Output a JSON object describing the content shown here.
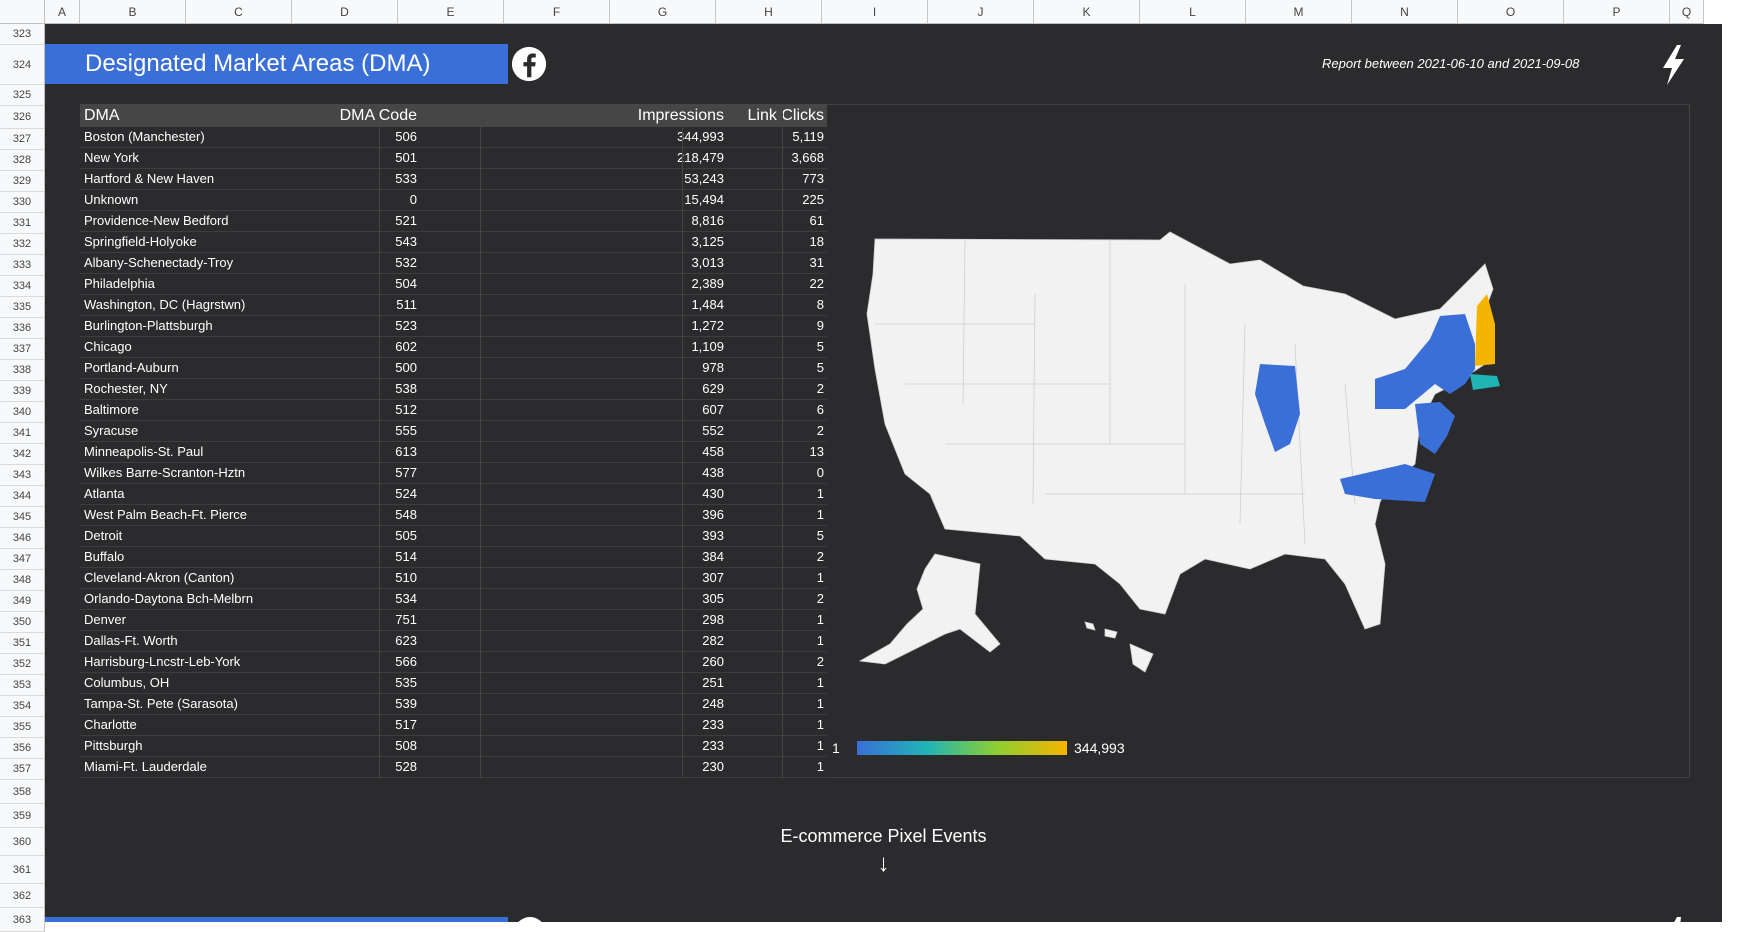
{
  "columns": [
    "A",
    "B",
    "C",
    "D",
    "E",
    "F",
    "G",
    "H",
    "I",
    "J",
    "K",
    "L",
    "M",
    "N",
    "O",
    "P",
    "Q"
  ],
  "rows": [
    "323",
    "324",
    "325",
    "326",
    "327",
    "328",
    "329",
    "330",
    "331",
    "332",
    "333",
    "334",
    "335",
    "336",
    "337",
    "338",
    "339",
    "340",
    "341",
    "342",
    "343",
    "344",
    "345",
    "346",
    "347",
    "348",
    "349",
    "350",
    "351",
    "352",
    "353",
    "354",
    "355",
    "356",
    "357",
    "358",
    "359",
    "360",
    "361",
    "362",
    "363"
  ],
  "header": {
    "title": "Designated Market Areas (DMA)",
    "report": "Report between 2021-06-10 and 2021-09-08"
  },
  "table": {
    "headers": {
      "dma": "DMA",
      "code": "DMA Code",
      "impressions": "Impressions",
      "clicks": "Link Clicks"
    },
    "rows": [
      {
        "dma": "Boston (Manchester)",
        "code": "506",
        "impressions": "344,993",
        "clicks": "5,119"
      },
      {
        "dma": "New York",
        "code": "501",
        "impressions": "218,479",
        "clicks": "3,668"
      },
      {
        "dma": "Hartford & New Haven",
        "code": "533",
        "impressions": "53,243",
        "clicks": "773"
      },
      {
        "dma": "Unknown",
        "code": "0",
        "impressions": "15,494",
        "clicks": "225"
      },
      {
        "dma": "Providence-New Bedford",
        "code": "521",
        "impressions": "8,816",
        "clicks": "61"
      },
      {
        "dma": "Springfield-Holyoke",
        "code": "543",
        "impressions": "3,125",
        "clicks": "18"
      },
      {
        "dma": "Albany-Schenectady-Troy",
        "code": "532",
        "impressions": "3,013",
        "clicks": "31"
      },
      {
        "dma": "Philadelphia",
        "code": "504",
        "impressions": "2,389",
        "clicks": "22"
      },
      {
        "dma": "Washington, DC (Hagrstwn)",
        "code": "511",
        "impressions": "1,484",
        "clicks": "8"
      },
      {
        "dma": "Burlington-Plattsburgh",
        "code": "523",
        "impressions": "1,272",
        "clicks": "9"
      },
      {
        "dma": "Chicago",
        "code": "602",
        "impressions": "1,109",
        "clicks": "5"
      },
      {
        "dma": "Portland-Auburn",
        "code": "500",
        "impressions": "978",
        "clicks": "5"
      },
      {
        "dma": "Rochester, NY",
        "code": "538",
        "impressions": "629",
        "clicks": "2"
      },
      {
        "dma": "Baltimore",
        "code": "512",
        "impressions": "607",
        "clicks": "6"
      },
      {
        "dma": "Syracuse",
        "code": "555",
        "impressions": "552",
        "clicks": "2"
      },
      {
        "dma": "Minneapolis-St. Paul",
        "code": "613",
        "impressions": "458",
        "clicks": "13"
      },
      {
        "dma": "Wilkes Barre-Scranton-Hztn",
        "code": "577",
        "impressions": "438",
        "clicks": "0"
      },
      {
        "dma": "Atlanta",
        "code": "524",
        "impressions": "430",
        "clicks": "1"
      },
      {
        "dma": "West Palm Beach-Ft. Pierce",
        "code": "548",
        "impressions": "396",
        "clicks": "1"
      },
      {
        "dma": "Detroit",
        "code": "505",
        "impressions": "393",
        "clicks": "5"
      },
      {
        "dma": "Buffalo",
        "code": "514",
        "impressions": "384",
        "clicks": "2"
      },
      {
        "dma": "Cleveland-Akron (Canton)",
        "code": "510",
        "impressions": "307",
        "clicks": "1"
      },
      {
        "dma": "Orlando-Daytona Bch-Melbrn",
        "code": "534",
        "impressions": "305",
        "clicks": "2"
      },
      {
        "dma": "Denver",
        "code": "751",
        "impressions": "298",
        "clicks": "1"
      },
      {
        "dma": "Dallas-Ft. Worth",
        "code": "623",
        "impressions": "282",
        "clicks": "1"
      },
      {
        "dma": "Harrisburg-Lncstr-Leb-York",
        "code": "566",
        "impressions": "260",
        "clicks": "2"
      },
      {
        "dma": "Columbus, OH",
        "code": "535",
        "impressions": "251",
        "clicks": "1"
      },
      {
        "dma": "Tampa-St. Pete (Sarasota)",
        "code": "539",
        "impressions": "248",
        "clicks": "1"
      },
      {
        "dma": "Charlotte",
        "code": "517",
        "impressions": "233",
        "clicks": "1"
      },
      {
        "dma": "Pittsburgh",
        "code": "508",
        "impressions": "233",
        "clicks": "1"
      },
      {
        "dma": "Miami-Ft. Lauderdale",
        "code": "528",
        "impressions": "230",
        "clicks": "1"
      }
    ]
  },
  "map": {
    "scale_min": "1",
    "scale_max": "344,993",
    "colors": {
      "land": "#f2f2f2",
      "border": "#cfcfcf",
      "low": "#3a6fd8",
      "mid": "#1fb5b5",
      "high": "#f5b400"
    }
  },
  "section": {
    "title": "E-commerce Pixel Events",
    "arrow": "↓"
  },
  "icons": {
    "social": "facebook-icon",
    "brand": "lightning-bolt-icon"
  }
}
